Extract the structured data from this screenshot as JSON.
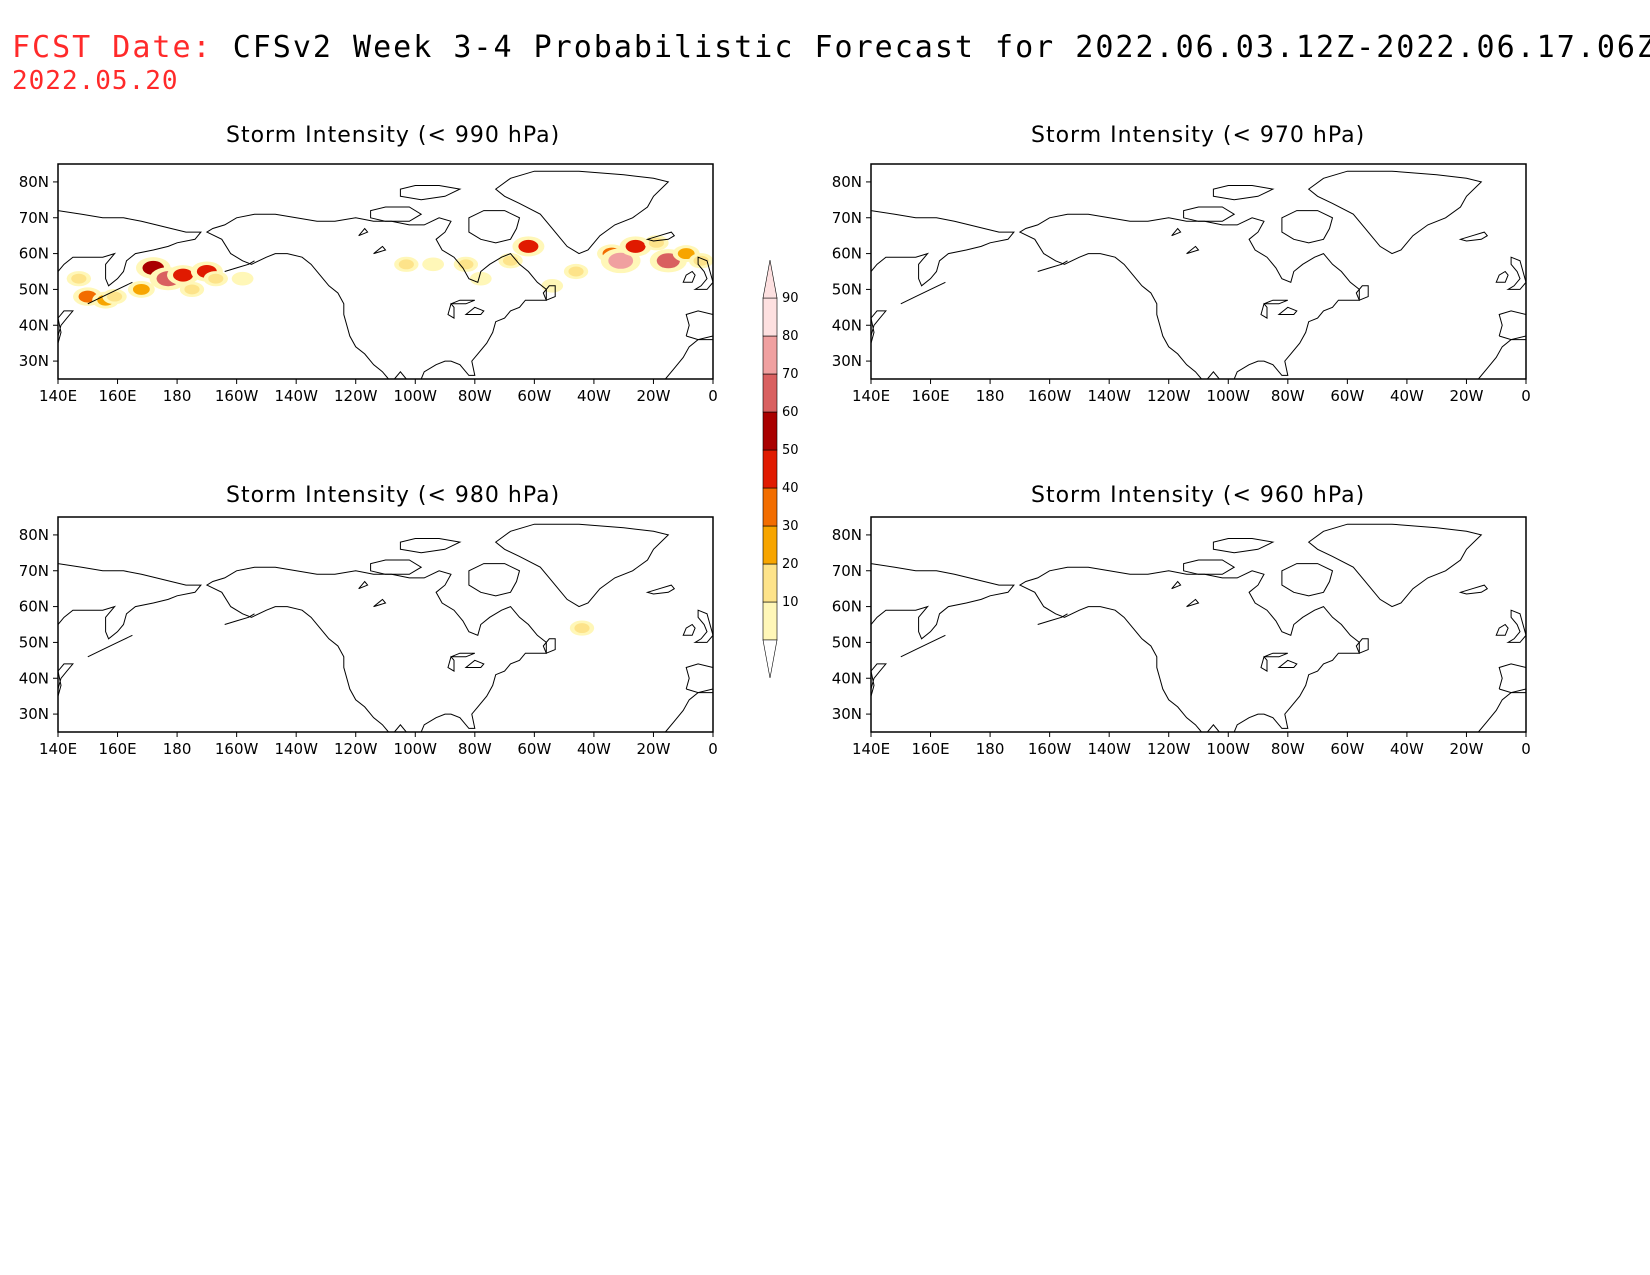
{
  "header": {
    "fcst_label": "FCST Date:",
    "title": "CFSv2 Week 3-4 Probabilistic Forecast for 2022.06.03.12Z-2022.06.17.06Z",
    "fcst_date": "2022.05.20"
  },
  "axes": {
    "lon_ticks": [
      "140E",
      "160E",
      "180",
      "160W",
      "140W",
      "120W",
      "100W",
      "80W",
      "60W",
      "40W",
      "20W",
      "0"
    ],
    "lat_ticks": [
      "80N",
      "70N",
      "60N",
      "50N",
      "40N",
      "30N"
    ]
  },
  "panels": [
    {
      "id": "p990",
      "title": "Storm Intensity (< 990 hPa)"
    },
    {
      "id": "p970",
      "title": "Storm Intensity (< 970 hPa)"
    },
    {
      "id": "p980",
      "title": "Storm Intensity (< 980 hPa)"
    },
    {
      "id": "p960",
      "title": "Storm Intensity (< 960 hPa)"
    }
  ],
  "colorbar": {
    "levels": [
      "10",
      "20",
      "30",
      "40",
      "50",
      "60",
      "70",
      "80",
      "90"
    ],
    "colors": [
      "#fff7b8",
      "#fde38a",
      "#f7a500",
      "#f26d00",
      "#e01a00",
      "#a90000",
      "#d96060",
      "#f0a0a0",
      "#fde0e0"
    ]
  },
  "map_data": {
    "lon_range": [
      140,
      360
    ],
    "lat_range": [
      25,
      85
    ],
    "p990_blobs": [
      {
        "lon": 147,
        "lat": 53,
        "level": 20
      },
      {
        "lon": 150,
        "lat": 48,
        "level": 40
      },
      {
        "lon": 156,
        "lat": 47,
        "level": 30
      },
      {
        "lon": 159,
        "lat": 48,
        "level": 20
      },
      {
        "lon": 168,
        "lat": 50,
        "level": 30
      },
      {
        "lon": 172,
        "lat": 56,
        "level": 60
      },
      {
        "lon": 177,
        "lat": 53,
        "level": 70
      },
      {
        "lon": 182,
        "lat": 54,
        "level": 50
      },
      {
        "lon": 185,
        "lat": 50,
        "level": 20
      },
      {
        "lon": 190,
        "lat": 55,
        "level": 50
      },
      {
        "lon": 193,
        "lat": 53,
        "level": 20
      },
      {
        "lon": 202,
        "lat": 53,
        "level": 10
      },
      {
        "lon": 257,
        "lat": 57,
        "level": 20
      },
      {
        "lon": 266,
        "lat": 57,
        "level": 10
      },
      {
        "lon": 277,
        "lat": 57,
        "level": 20
      },
      {
        "lon": 282,
        "lat": 53,
        "level": 10
      },
      {
        "lon": 292,
        "lat": 58,
        "level": 20
      },
      {
        "lon": 298,
        "lat": 62,
        "level": 50
      },
      {
        "lon": 306,
        "lat": 51,
        "level": 10
      },
      {
        "lon": 314,
        "lat": 55,
        "level": 20
      },
      {
        "lon": 326,
        "lat": 60,
        "level": 40
      },
      {
        "lon": 329,
        "lat": 58,
        "level": 80
      },
      {
        "lon": 334,
        "lat": 62,
        "level": 50
      },
      {
        "lon": 341,
        "lat": 63,
        "level": 20
      },
      {
        "lon": 345,
        "lat": 58,
        "level": 70
      },
      {
        "lon": 351,
        "lat": 60,
        "level": 30
      },
      {
        "lon": 356,
        "lat": 58,
        "level": 20
      }
    ],
    "p980_blobs": [
      {
        "lon": 316,
        "lat": 54,
        "level": 20
      }
    ]
  }
}
